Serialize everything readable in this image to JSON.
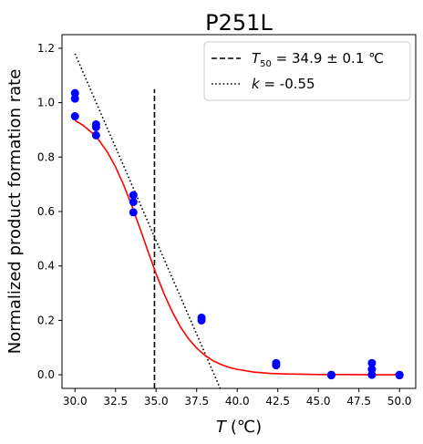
{
  "chart_data": {
    "type": "scatter",
    "title": "P251L",
    "xlabel": {
      "symbol": "T",
      "unit": "(℃)"
    },
    "ylabel": "Normalized product formation rate",
    "xlim": [
      29.2,
      51.0
    ],
    "ylim": [
      -0.05,
      1.25
    ],
    "xticks": [
      30.0,
      32.5,
      35.0,
      37.5,
      40.0,
      42.5,
      45.0,
      47.5,
      50.0
    ],
    "xtick_labels": [
      "30.0",
      "32.5",
      "35.0",
      "37.5",
      "40.0",
      "42.5",
      "45.0",
      "47.5",
      "50.0"
    ],
    "yticks": [
      0.0,
      0.2,
      0.4,
      0.6,
      0.8,
      1.0,
      1.2
    ],
    "ytick_labels": [
      "0.0",
      "0.2",
      "0.4",
      "0.6",
      "0.8",
      "1.0",
      "1.2"
    ],
    "grid": false,
    "legend_position": "top-right",
    "points": {
      "color": "#0000ff",
      "data": [
        [
          30.0,
          1.035
        ],
        [
          30.0,
          1.015
        ],
        [
          30.0,
          0.95
        ],
        [
          31.3,
          0.92
        ],
        [
          31.3,
          0.91
        ],
        [
          31.3,
          0.88
        ],
        [
          33.6,
          0.66
        ],
        [
          33.6,
          0.635
        ],
        [
          33.6,
          0.597
        ],
        [
          37.8,
          0.21
        ],
        [
          37.8,
          0.2
        ],
        [
          42.4,
          0.043
        ],
        [
          42.4,
          0.035
        ],
        [
          45.8,
          0.0
        ],
        [
          45.8,
          -0.002
        ],
        [
          48.3,
          0.043
        ],
        [
          48.3,
          0.02
        ],
        [
          48.3,
          0.0
        ],
        [
          50.0,
          0.0
        ],
        [
          50.0,
          -0.002
        ]
      ]
    },
    "fit_curve": {
      "color": "#ff0000",
      "x": [
        30.0,
        30.5,
        31.0,
        31.5,
        32.0,
        32.5,
        33.0,
        33.5,
        34.0,
        34.5,
        35.0,
        35.5,
        36.0,
        36.5,
        37.0,
        37.5,
        38.0,
        38.5,
        39.0,
        39.5,
        40.0,
        41.0,
        42.0,
        43.0,
        44.0,
        45.0,
        46.0,
        47.0,
        48.0,
        49.0,
        50.0
      ],
      "y": [
        0.935,
        0.917,
        0.892,
        0.86,
        0.818,
        0.764,
        0.698,
        0.622,
        0.539,
        0.454,
        0.371,
        0.296,
        0.231,
        0.176,
        0.132,
        0.098,
        0.072,
        0.052,
        0.038,
        0.027,
        0.02,
        0.01,
        0.005,
        0.003,
        0.002,
        0.001,
        0.001,
        0.001,
        0.0,
        0.0,
        0.0
      ]
    },
    "series": [
      {
        "name": "T50 = 34.9 ± 0.1 ℃",
        "style": "dashed",
        "color": "#000000",
        "x": [
          34.9,
          34.9
        ],
        "y": [
          -0.05,
          1.05
        ]
      },
      {
        "name": "k = -0.55",
        "style": "dotted",
        "color": "#000000",
        "x": [
          30.0,
          38.95
        ],
        "y": [
          1.18,
          -0.05
        ]
      }
    ],
    "legend": [
      {
        "symbol": "T",
        "sub": "50",
        "text": " = 34.9 ± 0.1 ℃",
        "style": "dashed"
      },
      {
        "symbol": "k",
        "sub": "",
        "text": " = -0.55",
        "style": "dotted"
      }
    ]
  }
}
